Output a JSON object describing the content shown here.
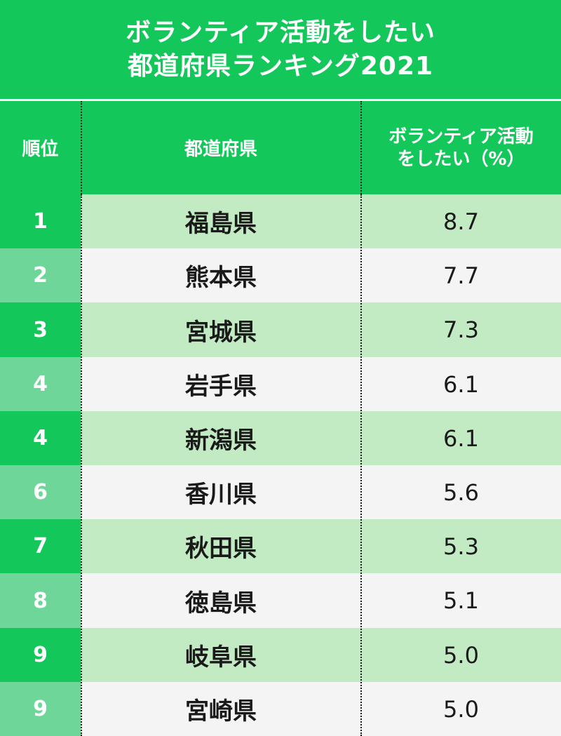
{
  "title_lines": [
    "ボランティア活動をしたい",
    "都道府県ランキング2021"
  ],
  "headers": {
    "rank": "順位",
    "prefecture": "都道府県",
    "value_lines": [
      "ボランティア活動",
      "をしたい（%）"
    ]
  },
  "chart_data": {
    "type": "table",
    "columns": [
      "順位",
      "都道府県",
      "ボランティア活動をしたい（%）"
    ],
    "rows": [
      {
        "rank": "1",
        "prefecture": "福島県",
        "value": "8.7"
      },
      {
        "rank": "2",
        "prefecture": "熊本県",
        "value": "7.7"
      },
      {
        "rank": "3",
        "prefecture": "宮城県",
        "value": "7.3"
      },
      {
        "rank": "4",
        "prefecture": "岩手県",
        "value": "6.1"
      },
      {
        "rank": "4",
        "prefecture": "新潟県",
        "value": "6.1"
      },
      {
        "rank": "6",
        "prefecture": "香川県",
        "value": "5.6"
      },
      {
        "rank": "7",
        "prefecture": "秋田県",
        "value": "5.3"
      },
      {
        "rank": "8",
        "prefecture": "徳島県",
        "value": "5.1"
      },
      {
        "rank": "9",
        "prefecture": "岐阜県",
        "value": "5.0"
      },
      {
        "rank": "9",
        "prefecture": "宮崎県",
        "value": "5.0"
      }
    ]
  },
  "colors": {
    "header_green": "#13c75a",
    "rank_alt_green": "#6fd69a",
    "row_light_green": "#c2ebc3",
    "row_gray": "#f4f4f4",
    "text_dark": "#1a1a1a"
  }
}
